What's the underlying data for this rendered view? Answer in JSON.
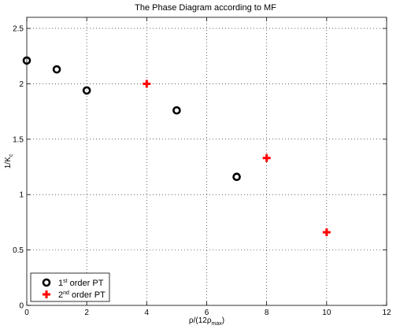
{
  "chart_data": {
    "type": "scatter",
    "title": "The Phase Diagram according to MF",
    "xlabel": {
      "base": "ρ/(12ρ",
      "sub": "max",
      "tail": ")"
    },
    "ylabel": {
      "base": "1/K",
      "sub": "c"
    },
    "xlim": [
      0,
      12
    ],
    "ylim": [
      0,
      2.6
    ],
    "xticks": [
      0,
      2,
      4,
      6,
      8,
      10,
      12
    ],
    "yticks": [
      0,
      0.5,
      1,
      1.5,
      2,
      2.5
    ],
    "xtick_labels": [
      "0",
      "2",
      "4",
      "6",
      "8",
      "10",
      "12"
    ],
    "ytick_labels": [
      "0",
      "0.5",
      "1",
      "1.5",
      "2",
      "2.5"
    ],
    "grid": true,
    "legend_position": "bottom-left",
    "series": [
      {
        "name": {
          "pre": "1",
          "sup": "st",
          "post": " order PT"
        },
        "marker": "circle",
        "color": "#000000",
        "points": [
          {
            "x": 0,
            "y": 2.21
          },
          {
            "x": 1,
            "y": 2.13
          },
          {
            "x": 2,
            "y": 1.94
          },
          {
            "x": 5,
            "y": 1.76
          },
          {
            "x": 7,
            "y": 1.16
          }
        ]
      },
      {
        "name": {
          "pre": "2",
          "sup": "nd",
          "post": " order PT"
        },
        "marker": "plus",
        "color": "#ff0000",
        "points": [
          {
            "x": 4,
            "y": 2.0
          },
          {
            "x": 8,
            "y": 1.33
          },
          {
            "x": 10,
            "y": 0.66
          }
        ]
      }
    ]
  }
}
